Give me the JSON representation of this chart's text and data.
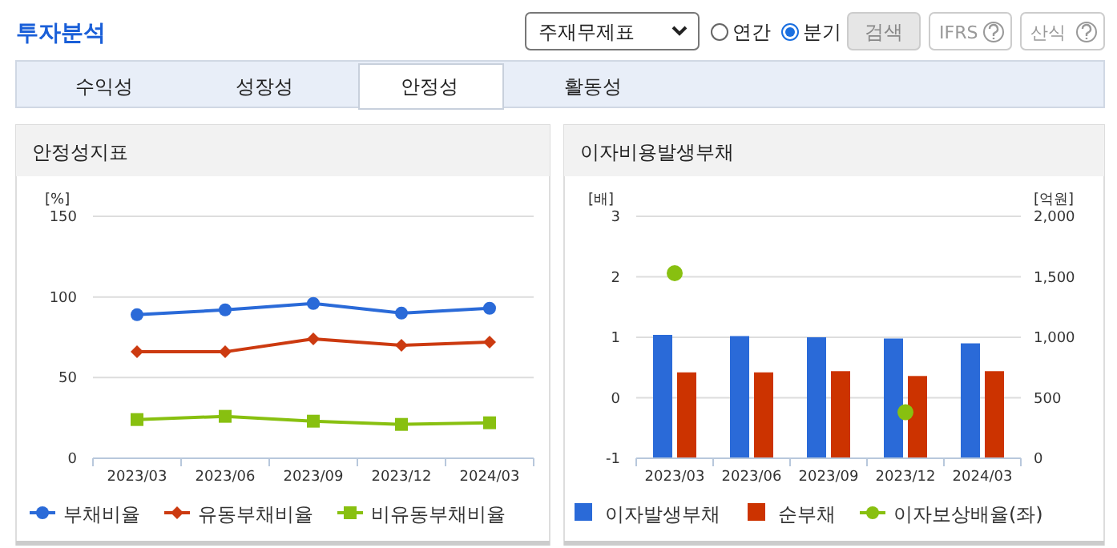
{
  "chart_data": [
    {
      "type": "other",
      "title": "투자분석",
      "annotations": [
        "주재무제표",
        "연간",
        "분기",
        "검색",
        "IFRS",
        "산식",
        "수익성",
        "성장성",
        "안정성",
        "활동성"
      ]
    },
    {
      "type": "line",
      "title": "안정성지표",
      "ylabel": "[%]",
      "categories": [
        "2023/03",
        "2023/06",
        "2023/09",
        "2023/12",
        "2024/03"
      ],
      "ylim": [
        0,
        150
      ],
      "yticks": [
        0,
        50,
        100,
        150
      ],
      "grid": "y",
      "legend": "bottom",
      "series": [
        {
          "name": "부채비율",
          "color": "#2a6ad8",
          "marker": "circle",
          "values": [
            89,
            92,
            96,
            90,
            93
          ]
        },
        {
          "name": "유동부채비율",
          "color": "#cc3a10",
          "marker": "diamond",
          "values": [
            66,
            66,
            74,
            70,
            72
          ]
        },
        {
          "name": "비유동부채비율",
          "color": "#88c010",
          "marker": "square",
          "values": [
            24,
            26,
            23,
            21,
            22
          ]
        }
      ]
    },
    {
      "type": "bar",
      "title": "이자비용발생부채",
      "ylabel": "[배]",
      "y2label": "[억원]",
      "categories": [
        "2023/03",
        "2023/06",
        "2023/09",
        "2023/12",
        "2024/03"
      ],
      "ylim": [
        -1,
        3
      ],
      "yticks": [
        -1,
        0,
        1,
        2,
        3
      ],
      "y2lim": [
        0,
        2000
      ],
      "y2ticks": [
        0,
        500,
        {
          "value": 1000,
          "label": "1,000"
        },
        {
          "value": 1500,
          "label": "1,500"
        },
        {
          "value": 2000,
          "label": "2,000"
        }
      ],
      "grid": "y",
      "legend": "bottom",
      "series": [
        {
          "name": "이자발생부채",
          "type": "bar",
          "axis": "y2",
          "color": "#2a6ad8",
          "values": [
            1020,
            1010,
            1000,
            990,
            950
          ]
        },
        {
          "name": "순부채",
          "type": "bar",
          "axis": "y2",
          "color": "#cc3300",
          "values": [
            710,
            710,
            720,
            680,
            720
          ]
        },
        {
          "name": "이자보상배율(좌)",
          "type": "scatter",
          "axis": "y",
          "marker": "circle",
          "color": "#88c010",
          "values": [
            2.06,
            null,
            null,
            -0.24,
            null
          ]
        }
      ]
    }
  ]
}
